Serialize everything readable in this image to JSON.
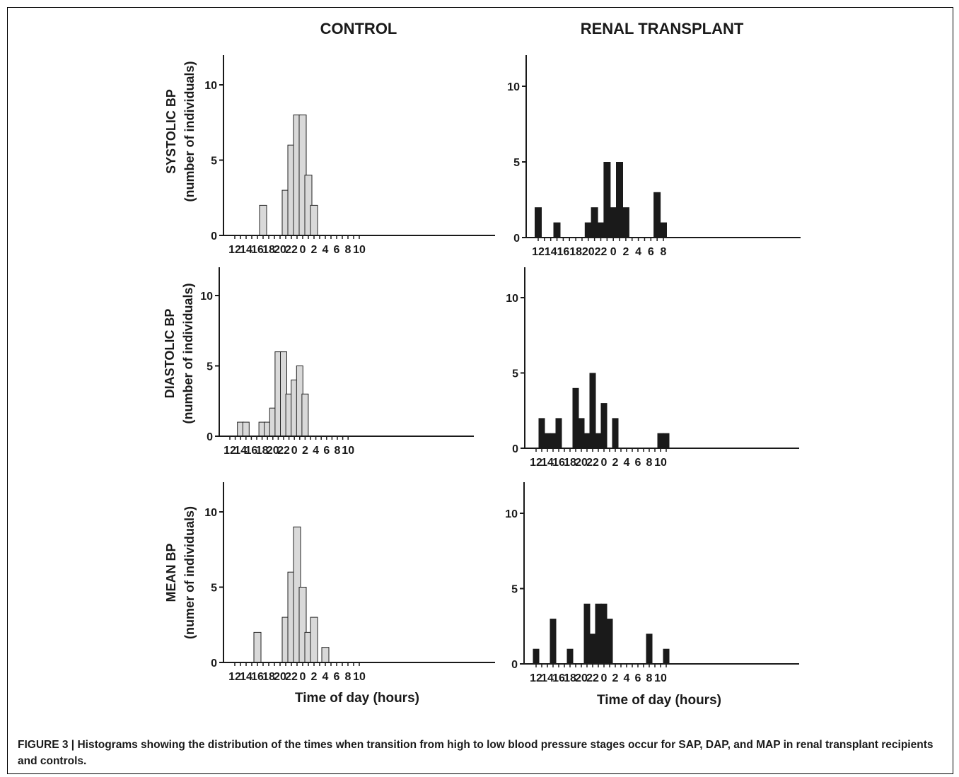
{
  "figure": {
    "caption_label": "FIGURE 3 |",
    "caption_text": "Histograms showing the distribution of the times when transition from high to low blood pressure stages occur for SAP, DAP, and MAP in renal transplant recipients and controls."
  },
  "colors": {
    "control_fill": "#d9d9d9",
    "transplant_fill": "#1a1a1a",
    "axis": "#1a1a1a"
  },
  "columns": {
    "control_title": "CONTROL",
    "transplant_title": "RENAL TRANSPLANT"
  },
  "rows": [
    {
      "title": "SYSTOLIC BP",
      "subtitle": "(number of individuals)"
    },
    {
      "title": "DIASTOLIC BP",
      "subtitle": "(number of individuals)"
    },
    {
      "title": "MEAN BP",
      "subtitle": "(numer of individuals)"
    }
  ],
  "xlabel": "Time of day (hours)",
  "chart_data": [
    {
      "id": "control-systolic",
      "type": "bar",
      "group": "CONTROL",
      "row": "SYSTOLIC BP",
      "x_ticks": [
        "12",
        "14",
        "16",
        "18",
        "20",
        "22",
        "0",
        "2",
        "4",
        "6",
        "8",
        "10"
      ],
      "x_hours": [
        12,
        13,
        14,
        15,
        16,
        17,
        18,
        19,
        20,
        21,
        22,
        23,
        24,
        25,
        26,
        27,
        28,
        29,
        30,
        31,
        32,
        33,
        34
      ],
      "values": [
        0,
        0,
        0,
        0,
        0,
        2,
        0,
        0,
        0,
        3,
        6,
        8,
        8,
        4,
        2,
        0,
        0,
        0,
        0,
        0,
        0,
        0,
        0
      ],
      "ylim": [
        0,
        12
      ],
      "y_ticks": [
        0,
        5,
        10
      ]
    },
    {
      "id": "transplant-systolic",
      "type": "bar",
      "group": "RENAL TRANSPLANT",
      "row": "SYSTOLIC BP",
      "x_ticks": [
        "12",
        "14",
        "16",
        "18",
        "20",
        "22",
        "0",
        "2",
        "4",
        "6",
        "8"
      ],
      "x_hours": [
        12,
        13,
        14,
        15,
        16,
        17,
        18,
        19,
        20,
        21,
        22,
        23,
        24,
        25,
        26,
        27,
        28,
        29,
        30,
        31,
        32
      ],
      "values": [
        2,
        0,
        0,
        1,
        0,
        0,
        0,
        0,
        1,
        2,
        1,
        5,
        2,
        5,
        2,
        0,
        0,
        0,
        0,
        3,
        1
      ],
      "ylim": [
        0,
        12
      ],
      "y_ticks": [
        0,
        5,
        10
      ]
    },
    {
      "id": "control-diastolic",
      "type": "bar",
      "group": "CONTROL",
      "row": "DIASTOLIC BP",
      "x_ticks": [
        "12",
        "14",
        "16",
        "18",
        "20",
        "22",
        "0",
        "2",
        "4",
        "6",
        "8",
        "10"
      ],
      "x_hours": [
        12,
        13,
        14,
        15,
        16,
        17,
        18,
        19,
        20,
        21,
        22,
        23,
        24,
        25,
        26,
        27,
        28,
        29,
        30,
        31,
        32,
        33,
        34
      ],
      "values": [
        0,
        0,
        1,
        1,
        0,
        0,
        1,
        1,
        2,
        6,
        6,
        3,
        4,
        5,
        3,
        0,
        0,
        0,
        0,
        0,
        0,
        0,
        0
      ],
      "ylim": [
        0,
        12
      ],
      "y_ticks": [
        0,
        5,
        10
      ]
    },
    {
      "id": "transplant-diastolic",
      "type": "bar",
      "group": "RENAL TRANSPLANT",
      "row": "DIASTOLIC BP",
      "x_ticks": [
        "12",
        "14",
        "16",
        "18",
        "20",
        "22",
        "0",
        "2",
        "4",
        "6",
        "8",
        "10"
      ],
      "x_hours": [
        12,
        13,
        14,
        15,
        16,
        17,
        18,
        19,
        20,
        21,
        22,
        23,
        24,
        25,
        26,
        27,
        28,
        29,
        30,
        31,
        32,
        33,
        34,
        35
      ],
      "values": [
        0,
        2,
        1,
        1,
        2,
        0,
        0,
        4,
        2,
        1,
        5,
        1,
        3,
        0,
        2,
        0,
        0,
        0,
        0,
        0,
        0,
        0,
        1,
        1
      ],
      "ylim": [
        0,
        12
      ],
      "y_ticks": [
        0,
        5,
        10
      ]
    },
    {
      "id": "control-mean",
      "type": "bar",
      "group": "CONTROL",
      "row": "MEAN BP",
      "x_ticks": [
        "12",
        "14",
        "16",
        "18",
        "20",
        "22",
        "0",
        "2",
        "4",
        "6",
        "8",
        "10"
      ],
      "x_hours": [
        12,
        13,
        14,
        15,
        16,
        17,
        18,
        19,
        20,
        21,
        22,
        23,
        24,
        25,
        26,
        27,
        28,
        29,
        30,
        31,
        32,
        33,
        34
      ],
      "values": [
        0,
        0,
        0,
        0,
        2,
        0,
        0,
        0,
        0,
        3,
        6,
        9,
        5,
        2,
        3,
        0,
        1,
        0,
        0,
        0,
        0,
        0,
        0
      ],
      "ylim": [
        0,
        12
      ],
      "y_ticks": [
        0,
        5,
        10
      ]
    },
    {
      "id": "transplant-mean",
      "type": "bar",
      "group": "RENAL TRANSPLANT",
      "row": "MEAN BP",
      "x_ticks": [
        "12",
        "14",
        "16",
        "18",
        "20",
        "22",
        "0",
        "2",
        "4",
        "6",
        "8",
        "10"
      ],
      "x_hours": [
        12,
        13,
        14,
        15,
        16,
        17,
        18,
        19,
        20,
        21,
        22,
        23,
        24,
        25,
        26,
        27,
        28,
        29,
        30,
        31,
        32,
        33,
        34,
        35
      ],
      "values": [
        1,
        0,
        0,
        3,
        0,
        0,
        1,
        0,
        0,
        4,
        2,
        4,
        4,
        3,
        0,
        0,
        0,
        0,
        0,
        0,
        2,
        0,
        0,
        1
      ],
      "ylim": [
        0,
        12
      ],
      "y_ticks": [
        0,
        5,
        10
      ]
    }
  ]
}
